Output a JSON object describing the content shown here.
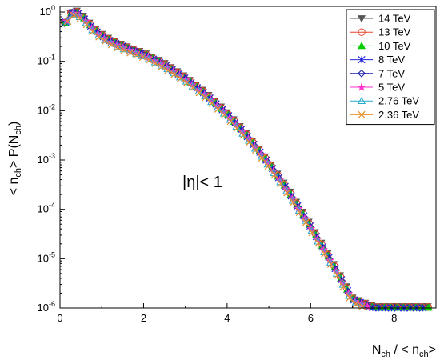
{
  "chart_data": {
    "type": "scatter",
    "xlabel_parts": [
      "N",
      "ch",
      " / < n",
      "ch",
      ">"
    ],
    "ylabel_parts": [
      "< n",
      "ch",
      "> P(N",
      "ch",
      ")"
    ],
    "annotation": "|η|< 1",
    "xlim": [
      0,
      9
    ],
    "ylim": [
      1e-06,
      1.3
    ],
    "yscale": "log",
    "xticks": [
      0,
      2,
      4,
      6,
      8
    ],
    "xtick_labels": [
      "0",
      "2",
      "4",
      "6",
      "8"
    ],
    "yticks": [
      {
        "value": 1.0,
        "base": "10",
        "exp": "0"
      },
      {
        "value": 0.1,
        "base": "10",
        "exp": "-1"
      },
      {
        "value": 0.01,
        "base": "10",
        "exp": "-2"
      },
      {
        "value": 0.001,
        "base": "10",
        "exp": "-3"
      },
      {
        "value": 0.0001,
        "base": "10",
        "exp": "-4"
      },
      {
        "value": 1e-05,
        "base": "10",
        "exp": "-5"
      },
      {
        "value": 1e-06,
        "base": "10",
        "exp": "-6"
      }
    ],
    "grid": false,
    "legend_position": "top-right",
    "curve_template": {
      "x": [
        0.1,
        0.2,
        0.3,
        0.4,
        0.5,
        0.6,
        0.8,
        1.0,
        1.2,
        1.5,
        1.8,
        2.0,
        2.5,
        3.0,
        3.5,
        4.0,
        4.5,
        5.0,
        5.5,
        6.0,
        6.5,
        7.0,
        7.5,
        8.0,
        8.3,
        8.6,
        8.9
      ],
      "y": [
        0.55,
        0.8,
        1.0,
        0.98,
        0.85,
        0.7,
        0.45,
        0.33,
        0.26,
        0.2,
        0.16,
        0.14,
        0.085,
        0.045,
        0.021,
        0.0085,
        0.0029,
        0.00085,
        0.00021,
        4.4e-05,
        8.5e-06,
        1.5e-06,
        1e-06,
        1e-06,
        1e-06,
        1e-06,
        1e-06
      ]
    },
    "series": [
      {
        "name": "14 TeV",
        "marker": "triangle-down",
        "color": "#555555",
        "filled": true,
        "scale": 1.08,
        "xmax": 8.9
      },
      {
        "name": "13 TeV",
        "marker": "circle",
        "color": "#e8402a",
        "filled": false,
        "scale": 1.05,
        "xmax": 8.9
      },
      {
        "name": "10 TeV",
        "marker": "triangle-up",
        "color": "#00cc00",
        "filled": true,
        "scale": 1.02,
        "xmax": 8.9
      },
      {
        "name": "8 TeV",
        "marker": "x-star",
        "color": "#2222dd",
        "filled": false,
        "scale": 1.0,
        "xmax": 8.8
      },
      {
        "name": "7 TeV",
        "marker": "diamond",
        "color": "#1a1aaa",
        "filled": false,
        "scale": 0.98,
        "xmax": 8.8
      },
      {
        "name": "5 TeV",
        "marker": "star",
        "color": "#ff33cc",
        "filled": true,
        "scale": 0.95,
        "xmax": 8.7
      },
      {
        "name": "2.76 TeV",
        "marker": "triangle-up",
        "color": "#22aacc",
        "filled": false,
        "scale": 0.9,
        "xmax": 8.6
      },
      {
        "name": "2.36 TeV",
        "marker": "x",
        "color": "#e8902a",
        "filled": false,
        "scale": 0.86,
        "xmax": 8.6
      }
    ]
  }
}
